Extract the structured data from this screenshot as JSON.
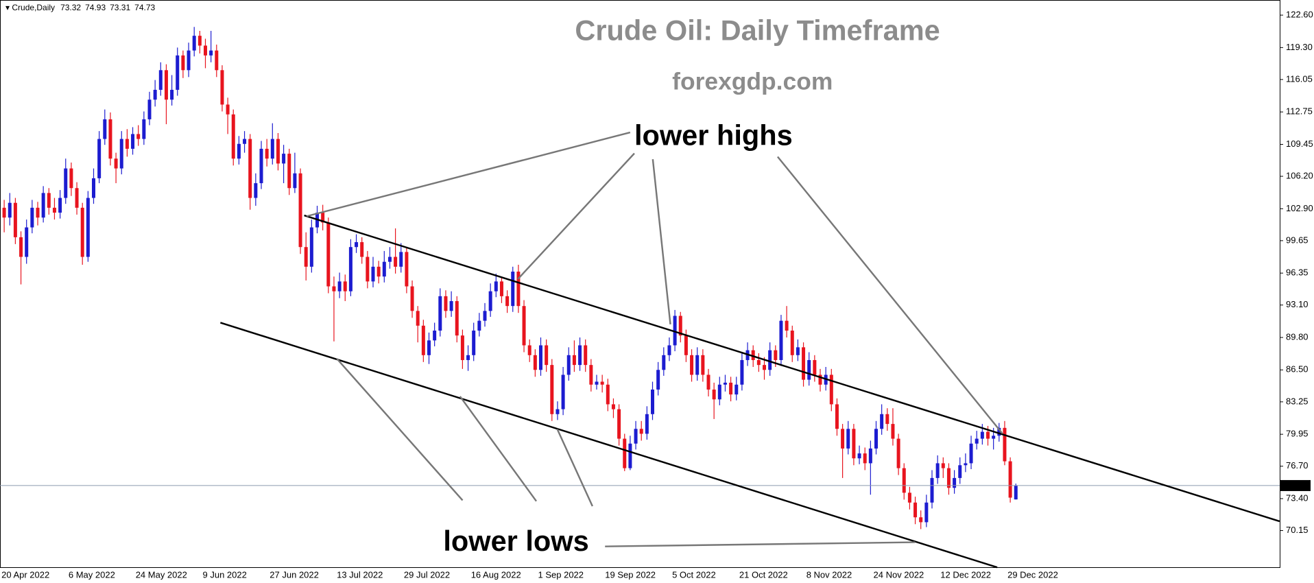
{
  "chart_data": {
    "type": "candlestick",
    "symbol": "Crude,Daily",
    "title": "Crude Oil: Daily Timeframe",
    "subtitle": "forexgdp.com",
    "annotations": [
      "lower highs",
      "lower lows"
    ],
    "up_color": "#1c1cd0",
    "down_color": "#e8141e",
    "categories": [
      "20 Apr 2022",
      null,
      null,
      null,
      null,
      null,
      null,
      null,
      null,
      null,
      null,
      null,
      "6 May 2022",
      null,
      null,
      null,
      null,
      null,
      null,
      null,
      null,
      null,
      null,
      null,
      "24 May 2022",
      null,
      null,
      null,
      null,
      null,
      null,
      null,
      null,
      null,
      null,
      null,
      "9 Jun 2022",
      null,
      null,
      null,
      null,
      null,
      null,
      null,
      null,
      null,
      null,
      null,
      "27 Jun 2022",
      null,
      null,
      null,
      null,
      null,
      null,
      null,
      null,
      null,
      null,
      null,
      "13 Jul 2022",
      null,
      null,
      null,
      null,
      null,
      null,
      null,
      null,
      null,
      null,
      null,
      "29 Jul 2022",
      null,
      null,
      null,
      null,
      null,
      null,
      null,
      null,
      null,
      null,
      null,
      "16 Aug 2022",
      null,
      null,
      null,
      null,
      null,
      null,
      null,
      null,
      null,
      null,
      null,
      "1 Sep 2022",
      null,
      null,
      null,
      null,
      null,
      null,
      null,
      null,
      null,
      null,
      null,
      "19 Sep 2022",
      null,
      null,
      null,
      null,
      null,
      null,
      null,
      null,
      null,
      null,
      null,
      "5 Oct 2022",
      null,
      null,
      null,
      null,
      null,
      null,
      null,
      null,
      null,
      null,
      null,
      "21 Oct 2022",
      null,
      null,
      null,
      null,
      null,
      null,
      null,
      null,
      null,
      null,
      null,
      "8 Nov 2022",
      null,
      null,
      null,
      null,
      null,
      null,
      null,
      null,
      null,
      null,
      null,
      "24 Nov 2022",
      null,
      null,
      null,
      null,
      null,
      null,
      null,
      null,
      null,
      null,
      null,
      "12 Dec 2022",
      null,
      null,
      null,
      null,
      null,
      null,
      null,
      null,
      null,
      null,
      null,
      "29 Dec 2022",
      null
    ],
    "open": [
      103,
      102,
      103.5,
      100,
      98,
      101,
      103,
      102,
      104.5,
      103,
      102.5,
      104,
      107,
      105,
      103,
      98,
      104,
      106,
      110,
      112,
      108,
      107,
      110,
      109,
      110.5,
      110,
      112,
      114,
      115,
      117,
      114,
      115,
      118.5,
      117,
      119,
      120.5,
      119.5,
      118.5,
      119,
      117,
      113.5,
      112.5,
      108,
      109.5,
      110,
      104,
      105.5,
      109,
      108,
      110,
      107.5,
      108.5,
      105,
      106.5,
      99,
      97,
      101,
      102.5,
      101.5,
      95,
      94.5,
      95.5,
      94.5,
      99,
      99.5,
      98,
      95.5,
      97,
      96,
      97.5,
      98,
      97,
      98.5,
      95,
      92.5,
      91,
      88,
      89.5,
      90.5,
      94,
      92.5,
      93.5,
      90,
      87.5,
      88,
      90.5,
      91.5,
      92.5,
      94.5,
      95.5,
      94,
      93,
      96.5,
      93,
      89,
      88,
      86.5,
      89,
      87,
      82,
      82.5,
      86,
      88,
      87,
      89,
      87,
      85,
      85.3,
      85,
      83,
      82.5,
      79.5,
      76.5,
      79,
      80.5,
      80,
      82,
      84.5,
      86.5,
      88,
      89,
      92,
      90,
      88,
      86,
      88,
      86,
      84.5,
      83.5,
      85,
      85.2,
      84,
      85,
      87.5,
      88.5,
      87.5,
      87,
      86.5,
      88.5,
      87.5,
      91.5,
      90.5,
      88,
      88.8,
      85.5,
      87.5,
      86,
      85,
      86,
      83,
      80.5,
      78.5,
      80.5,
      77.5,
      78,
      77,
      78.5,
      80.5,
      82,
      81,
      79.5,
      76.5,
      74,
      73,
      71.5,
      71,
      73,
      75.5,
      77,
      76.5,
      74.5,
      75.5,
      76.8,
      77,
      79,
      79.5,
      80.2,
      79.5,
      79.8,
      80.6,
      77.2,
      73.32
    ],
    "high": [
      103.8,
      104.5,
      104,
      100.6,
      101.8,
      103.8,
      103.6,
      105.2,
      105,
      104,
      104.8,
      108,
      107.6,
      105.6,
      103.5,
      104.7,
      107,
      110.8,
      113,
      112.7,
      108.6,
      110.8,
      111,
      111.2,
      111.4,
      112.8,
      114.8,
      116,
      117.8,
      117.6,
      116.5,
      119.3,
      119,
      119.8,
      121.4,
      121,
      120.2,
      121,
      119.6,
      117.5,
      114.2,
      113,
      110.3,
      110.8,
      110.5,
      106.5,
      109.8,
      110,
      111.6,
      110.6,
      109.4,
      109,
      108.6,
      107,
      100.5,
      101.8,
      103.2,
      103.3,
      102,
      96,
      96.4,
      96.2,
      99.8,
      100.3,
      100,
      98.6,
      98,
      97.6,
      98.6,
      99,
      100.9,
      99.4,
      99,
      95.6,
      93,
      91.6,
      90.3,
      91.3,
      94.8,
      94.6,
      94.5,
      94,
      90.6,
      89,
      91.3,
      92.3,
      93.3,
      95.3,
      96.3,
      96,
      94.6,
      97,
      97.2,
      93.6,
      89.6,
      88.6,
      89.8,
      89.6,
      87.6,
      83.3,
      86.8,
      88.8,
      89.5,
      89.8,
      89.6,
      87.6,
      86,
      86,
      85.6,
      83.6,
      83,
      80,
      79.8,
      81.3,
      81.3,
      82.8,
      85.3,
      87.3,
      88.8,
      89.8,
      92.6,
      92.4,
      90.6,
      88.6,
      88.8,
      88.6,
      86.6,
      85.2,
      85.8,
      86,
      85.8,
      85.8,
      88.3,
      89.3,
      89,
      88.2,
      87.8,
      89.3,
      89,
      92.1,
      93,
      91,
      89.6,
      89.3,
      88.3,
      88,
      86.6,
      86.8,
      86.6,
      83.6,
      81,
      81.3,
      81,
      78.8,
      78.6,
      79.3,
      81.3,
      83,
      82.6,
      82.6,
      80,
      77,
      74.6,
      73.6,
      72.2,
      73.8,
      76.3,
      77.8,
      77.6,
      77,
      76.3,
      77.6,
      78,
      79.8,
      80.3,
      81,
      80.8,
      80.6,
      81.1,
      81.3,
      77.6,
      74.93
    ],
    "low": [
      100.5,
      101.2,
      99.3,
      95.2,
      97.3,
      100.4,
      101.2,
      101.5,
      102.3,
      101.8,
      101.9,
      103.4,
      104.2,
      102.3,
      97.2,
      97.5,
      103.4,
      105.5,
      109.4,
      107.3,
      105.5,
      106.4,
      108.2,
      108.4,
      109.3,
      109.4,
      111.4,
      113.3,
      114.4,
      111.5,
      113.4,
      114.4,
      116.2,
      116.3,
      118.4,
      118.7,
      117.2,
      117.8,
      116.3,
      112.8,
      110.5,
      107.3,
      107.4,
      108.6,
      102.8,
      103.2,
      104.9,
      107.2,
      107.4,
      106.8,
      105.5,
      104.3,
      104.5,
      98.3,
      95.6,
      96.4,
      100.4,
      100.7,
      94.3,
      89.4,
      93.8,
      93.5,
      94,
      98.4,
      97.3,
      94.8,
      94.9,
      95.3,
      95.4,
      96.8,
      96.3,
      96.4,
      94.3,
      91.8,
      89.3,
      87.3,
      87.1,
      88.9,
      89.9,
      91.8,
      91.9,
      89.3,
      86.6,
      86.4,
      87.4,
      89.9,
      90.9,
      91.9,
      93.9,
      93.3,
      92.3,
      92.4,
      92.3,
      88.3,
      87.3,
      85.8,
      85.9,
      86.3,
      81.3,
      81.4,
      81.9,
      85.4,
      86.3,
      86.4,
      86.3,
      84.3,
      84.5,
      84.2,
      82.3,
      81.6,
      78.8,
      76.2,
      76.3,
      78.4,
      79.3,
      79.4,
      81.4,
      83.9,
      85.9,
      87.4,
      88.4,
      89.3,
      87.3,
      85.3,
      85.4,
      85.3,
      83.8,
      81.5,
      82.9,
      84.3,
      83.3,
      83.4,
      84.4,
      86.9,
      86.8,
      86.3,
      85.5,
      85.9,
      86.8,
      86.9,
      89.8,
      87.3,
      87.4,
      84.8,
      84.9,
      85.3,
      84.3,
      84.4,
      82.3,
      79.8,
      75.5,
      77.9,
      76.8,
      76.9,
      76.3,
      73.8,
      77.9,
      79.9,
      80.3,
      78.8,
      75.8,
      73.3,
      72.3,
      70.8,
      70.3,
      70.5,
      72.4,
      74.9,
      75.5,
      73.8,
      73.9,
      74.9,
      76.1,
      76.4,
      78.4,
      78.9,
      78.8,
      78.4,
      79.2,
      76.8,
      73,
      73.31
    ],
    "close": [
      102,
      103.5,
      100,
      98,
      101,
      103,
      102,
      104.5,
      103,
      102.5,
      104,
      107,
      105,
      103,
      98,
      104,
      106,
      110,
      112,
      108,
      107,
      110,
      109,
      110.5,
      110,
      112,
      114,
      115,
      117,
      114,
      115,
      118.5,
      117,
      119,
      120.5,
      119.5,
      118.5,
      119,
      117,
      113.5,
      112.5,
      108,
      109.5,
      110,
      104,
      105.5,
      109,
      108,
      110,
      107.5,
      108.5,
      105,
      106.5,
      99,
      97,
      101,
      102.5,
      101.5,
      95,
      94.5,
      95.5,
      94.5,
      99,
      99.5,
      98,
      95.5,
      97,
      96,
      97.5,
      98,
      97,
      98.5,
      95,
      92.5,
      91,
      88,
      89.5,
      90.5,
      94,
      92.5,
      93.5,
      90,
      87.5,
      88,
      90.5,
      91.5,
      92.5,
      94.5,
      95.5,
      94,
      93,
      96.5,
      93,
      89,
      88,
      86.5,
      89,
      87,
      82,
      82.5,
      86,
      88,
      87,
      89,
      87,
      85,
      85.3,
      85,
      83,
      82.5,
      79.5,
      76.5,
      79,
      80.5,
      80,
      82,
      84.5,
      86.5,
      88,
      89,
      92,
      90,
      88,
      86,
      88,
      86,
      84.5,
      83.5,
      85,
      85.2,
      84,
      85,
      87.5,
      88.5,
      87.5,
      87,
      86.5,
      88.5,
      87.5,
      91.5,
      90.5,
      88,
      88.8,
      85.5,
      87.5,
      86,
      85,
      86,
      83,
      80.5,
      78.5,
      80.5,
      77.5,
      78,
      77,
      78.5,
      80.5,
      82,
      81,
      79.5,
      76.5,
      74,
      73,
      71.5,
      71,
      73,
      75.5,
      77,
      76.5,
      74.5,
      75.5,
      76.8,
      77,
      79,
      79.5,
      80.2,
      79.5,
      79.8,
      80.6,
      77.2,
      73.5,
      74.73
    ],
    "ylim": [
      66.42,
      124.14
    ],
    "yticks": [
      {
        "value": 122.6,
        "label": "122.60"
      },
      {
        "value": 119.3,
        "label": "119.30"
      },
      116.05,
      112.75,
      109.45,
      {
        "value": 106.2,
        "label": "106.20"
      },
      {
        "value": 102.9,
        "label": "102.90"
      },
      99.65,
      96.35,
      {
        "value": 93.1,
        "label": "93.10"
      },
      {
        "value": 89.8,
        "label": "89.80"
      },
      {
        "value": 86.5,
        "label": "86.50"
      },
      83.25,
      79.95,
      {
        "value": 76.7,
        "label": "76.70"
      },
      {
        "value": 73.4,
        "label": "73.40"
      },
      70.15
    ]
  }
}
